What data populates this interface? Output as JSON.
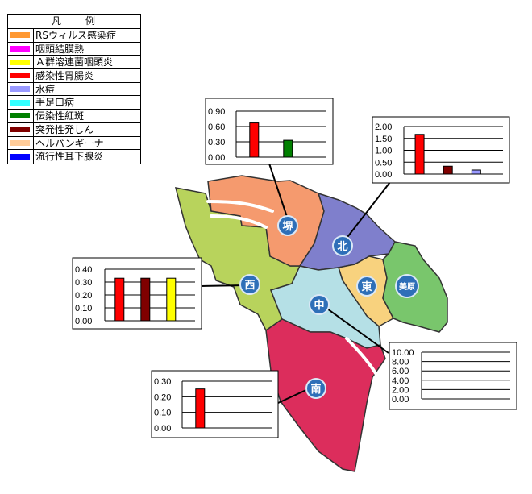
{
  "legend": {
    "title": "凡　　例",
    "items": [
      {
        "label": "RSウィルス感染症",
        "color": "#ff9933"
      },
      {
        "label": "咽頭結膜熱",
        "color": "#ff00ff"
      },
      {
        "label": "Ａ群溶連菌咽頭炎",
        "color": "#ffff00"
      },
      {
        "label": "感染性胃腸炎",
        "color": "#ff0000"
      },
      {
        "label": "水痘",
        "color": "#9999ff"
      },
      {
        "label": "手足口病",
        "color": "#33ffff"
      },
      {
        "label": "伝染性紅斑",
        "color": "#008000"
      },
      {
        "label": "突発性発しん",
        "color": "#800000"
      },
      {
        "label": "ヘルパンギーナ",
        "color": "#ffcc99"
      },
      {
        "label": "流行性耳下腺炎",
        "color": "#0000ff"
      }
    ]
  },
  "districts": {
    "sakai": {
      "label": "堺",
      "color": "#f59a6e"
    },
    "kita": {
      "label": "北",
      "color": "#7f7fcc"
    },
    "nishi": {
      "label": "西",
      "color": "#b8d35c"
    },
    "naka": {
      "label": "中",
      "color": "#b5e0e6"
    },
    "higashi": {
      "label": "東",
      "color": "#f8d27e"
    },
    "mihara": {
      "label": "美原",
      "color": "#79c66c"
    },
    "minami": {
      "label": "南",
      "color": "#dc2d5c"
    }
  },
  "chart_data": [
    {
      "type": "bar",
      "district": "堺",
      "y_ticks": [
        "0.90",
        "0.60",
        "0.30",
        "0.00"
      ],
      "ylim": [
        0,
        0.9
      ],
      "bars": [
        {
          "disease": "感染性胃腸炎",
          "value": 0.67,
          "color": "#ff0000"
        },
        {
          "disease": "伝染性紅斑",
          "value": 0.33,
          "color": "#008000"
        }
      ]
    },
    {
      "type": "bar",
      "district": "北",
      "y_ticks": [
        "2.00",
        "1.50",
        "1.00",
        "0.50",
        "0.00"
      ],
      "ylim": [
        0,
        2.0
      ],
      "bars": [
        {
          "disease": "感染性胃腸炎",
          "value": 1.67,
          "color": "#ff0000"
        },
        {
          "disease": "突発性発しん",
          "value": 0.33,
          "color": "#800000"
        },
        {
          "disease": "水痘",
          "value": 0.17,
          "color": "#9999ff"
        }
      ]
    },
    {
      "type": "bar",
      "district": "西",
      "y_ticks": [
        "0.40",
        "0.30",
        "0.20",
        "0.10",
        "0.00"
      ],
      "ylim": [
        0,
        0.4
      ],
      "bars": [
        {
          "disease": "感染性胃腸炎",
          "value": 0.33,
          "color": "#ff0000"
        },
        {
          "disease": "突発性発しん",
          "value": 0.33,
          "color": "#800000"
        },
        {
          "disease": "Ａ群溶連菌咽頭炎",
          "value": 0.33,
          "color": "#ffff00"
        }
      ]
    },
    {
      "type": "bar",
      "district": "中",
      "y_ticks": [
        "10.00",
        "8.00",
        "6.00",
        "4.00",
        "2.00",
        "0.00"
      ],
      "ylim": [
        0,
        10.0
      ],
      "bars": []
    },
    {
      "type": "bar",
      "district": "南",
      "y_ticks": [
        "0.30",
        "0.20",
        "0.10",
        "0.00"
      ],
      "ylim": [
        0,
        0.3
      ],
      "bars": [
        {
          "disease": "感染性胃腸炎",
          "value": 0.25,
          "color": "#ff0000"
        }
      ]
    }
  ]
}
